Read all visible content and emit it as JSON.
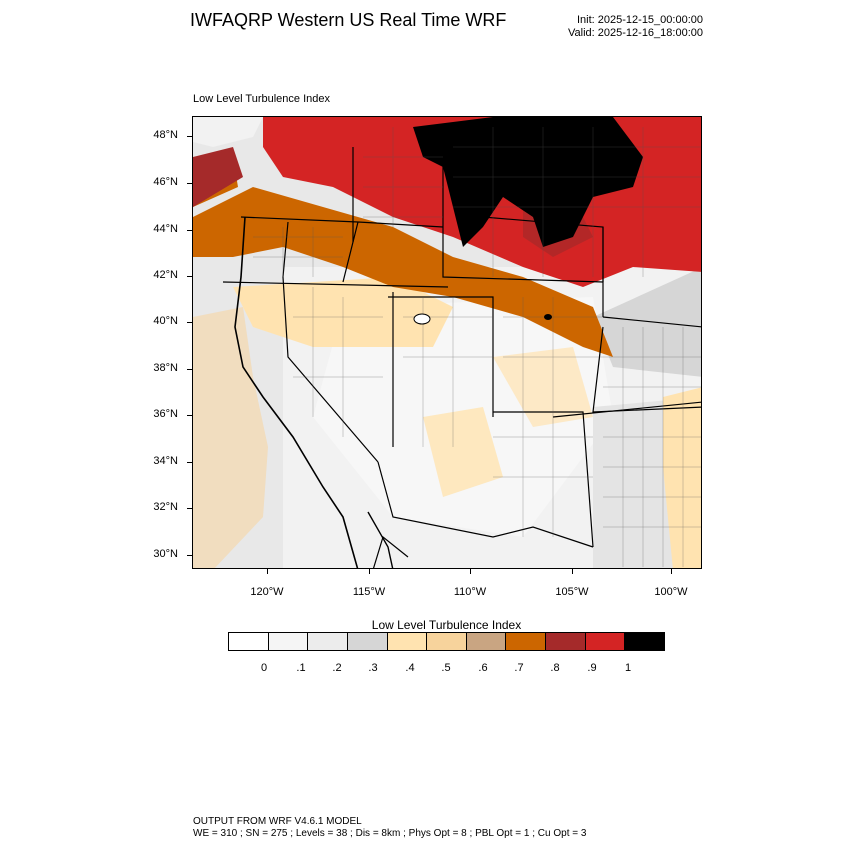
{
  "header": {
    "title": "IWFAQRP Western US Real Time WRF",
    "init": "Init: 2025-12-15_00:00:00",
    "valid": "Valid: 2025-12-16_18:00:00"
  },
  "map": {
    "subtitle": "Low Level Turbulence Index",
    "lat_labels": [
      "48°N",
      "46°N",
      "44°N",
      "42°N",
      "40°N",
      "38°N",
      "36°N",
      "34°N",
      "32°N",
      "30°N"
    ],
    "lon_labels": [
      "120°W",
      "115°W",
      "110°W",
      "105°W",
      "100°W"
    ]
  },
  "colorbar": {
    "title": "Low Level Turbulence Index",
    "colors": [
      "#ffffff",
      "#f5f5f5",
      "#ececec",
      "#d6d6d6",
      "#ffe3b0",
      "#f7d39c",
      "#c9a582",
      "#cc6600",
      "#a52a2a",
      "#d42424",
      "#000000"
    ],
    "tick_labels": [
      "0",
      ".1",
      ".2",
      ".3",
      ".4",
      ".5",
      ".6",
      ".7",
      ".8",
      ".9",
      "1"
    ]
  },
  "footer": {
    "line1": "OUTPUT FROM WRF V4.6.1 MODEL",
    "line2": "WE = 310 ; SN = 275 ; Levels = 38 ; Dis = 8km ; Phys Opt = 8 ; PBL Opt = 1 ; Cu Opt = 3"
  }
}
